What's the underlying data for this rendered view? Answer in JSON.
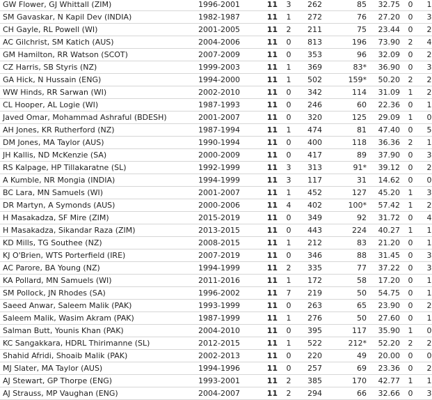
{
  "rows": [
    [
      "GW Flower, GJ Whittall (ZIM)",
      "1996-2001",
      "11",
      "3",
      "262",
      "85",
      "32.75",
      "0",
      "1"
    ],
    [
      "SM Gavaskar, N Kapil Dev (INDIA)",
      "1982-1987",
      "11",
      "1",
      "272",
      "76",
      "27.20",
      "0",
      "3"
    ],
    [
      "CH Gayle, RL Powell (WI)",
      "2001-2005",
      "11",
      "2",
      "211",
      "75",
      "23.44",
      "0",
      "2"
    ],
    [
      "AC Gilchrist, SM Katich (AUS)",
      "2004-2006",
      "11",
      "0",
      "813",
      "196",
      "73.90",
      "2",
      "4"
    ],
    [
      "GM Hamilton, RR Watson (SCOT)",
      "2007-2009",
      "11",
      "0",
      "353",
      "96",
      "32.09",
      "0",
      "2"
    ],
    [
      "CZ Harris, SB Styris (NZ)",
      "1999-2003",
      "11",
      "1",
      "369",
      "83*",
      "36.90",
      "0",
      "3"
    ],
    [
      "GA Hick, N Hussain (ENG)",
      "1994-2000",
      "11",
      "1",
      "502",
      "159*",
      "50.20",
      "2",
      "2"
    ],
    [
      "WW Hinds, RR Sarwan (WI)",
      "2002-2010",
      "11",
      "0",
      "342",
      "114",
      "31.09",
      "1",
      "2"
    ],
    [
      "CL Hooper, AL Logie (WI)",
      "1987-1993",
      "11",
      "0",
      "246",
      "60",
      "22.36",
      "0",
      "1"
    ],
    [
      "Javed Omar, Mohammad Ashraful (BDESH)",
      "2001-2007",
      "11",
      "0",
      "320",
      "125",
      "29.09",
      "1",
      "0"
    ],
    [
      "AH Jones, KR Rutherford (NZ)",
      "1987-1994",
      "11",
      "1",
      "474",
      "81",
      "47.40",
      "0",
      "5"
    ],
    [
      "DM Jones, MA Taylor (AUS)",
      "1990-1994",
      "11",
      "0",
      "400",
      "118",
      "36.36",
      "2",
      "1"
    ],
    [
      "JH Kallis, ND McKenzie (SA)",
      "2000-2009",
      "11",
      "0",
      "417",
      "89",
      "37.90",
      "0",
      "3"
    ],
    [
      "RS Kalpage, HP Tillakaratne (SL)",
      "1992-1999",
      "11",
      "3",
      "313",
      "91*",
      "39.12",
      "0",
      "2"
    ],
    [
      "A Kumble, NR Mongia (INDIA)",
      "1994-1999",
      "11",
      "3",
      "117",
      "31",
      "14.62",
      "0",
      "0"
    ],
    [
      "BC Lara, MN Samuels (WI)",
      "2001-2007",
      "11",
      "1",
      "452",
      "127",
      "45.20",
      "1",
      "3"
    ],
    [
      "DR Martyn, A Symonds (AUS)",
      "2000-2006",
      "11",
      "4",
      "402",
      "100*",
      "57.42",
      "1",
      "2"
    ],
    [
      "H Masakadza, SF Mire (ZIM)",
      "2015-2019",
      "11",
      "0",
      "349",
      "92",
      "31.72",
      "0",
      "4"
    ],
    [
      "H Masakadza, Sikandar Raza (ZIM)",
      "2013-2015",
      "11",
      "0",
      "443",
      "224",
      "40.27",
      "1",
      "1"
    ],
    [
      "KD Mills, TG Southee (NZ)",
      "2008-2015",
      "11",
      "1",
      "212",
      "83",
      "21.20",
      "0",
      "1"
    ],
    [
      "KJ O'Brien, WTS Porterfield (IRE)",
      "2007-2019",
      "11",
      "0",
      "346",
      "88",
      "31.45",
      "0",
      "3"
    ],
    [
      "AC Parore, BA Young (NZ)",
      "1994-1999",
      "11",
      "2",
      "335",
      "77",
      "37.22",
      "0",
      "3"
    ],
    [
      "KA Pollard, MN Samuels (WI)",
      "2011-2016",
      "11",
      "1",
      "172",
      "58",
      "17.20",
      "0",
      "1"
    ],
    [
      "SM Pollock, JN Rhodes (SA)",
      "1996-2002",
      "11",
      "7",
      "219",
      "50",
      "54.75",
      "0",
      "1"
    ],
    [
      "Saeed Anwar, Saleem Malik (PAK)",
      "1993-1999",
      "11",
      "0",
      "263",
      "65",
      "23.90",
      "0",
      "2"
    ],
    [
      "Saleem Malik, Wasim Akram (PAK)",
      "1987-1999",
      "11",
      "1",
      "276",
      "50",
      "27.60",
      "0",
      "1"
    ],
    [
      "Salman Butt, Younis Khan (PAK)",
      "2004-2010",
      "11",
      "0",
      "395",
      "117",
      "35.90",
      "1",
      "0"
    ],
    [
      "KC Sangakkara, HDRL Thirimanne (SL)",
      "2012-2015",
      "11",
      "1",
      "522",
      "212*",
      "52.20",
      "2",
      "2"
    ],
    [
      "Shahid Afridi, Shoaib Malik (PAK)",
      "2002-2013",
      "11",
      "0",
      "220",
      "49",
      "20.00",
      "0",
      "0"
    ],
    [
      "MJ Slater, MA Taylor (AUS)",
      "1994-1996",
      "11",
      "0",
      "257",
      "69",
      "23.36",
      "0",
      "2"
    ],
    [
      "AJ Stewart, GP Thorpe (ENG)",
      "1993-2001",
      "11",
      "2",
      "385",
      "170",
      "42.77",
      "1",
      "1"
    ],
    [
      "AJ Strauss, MP Vaughan (ENG)",
      "2004-2007",
      "11",
      "2",
      "294",
      "66",
      "32.66",
      "0",
      "3"
    ]
  ]
}
